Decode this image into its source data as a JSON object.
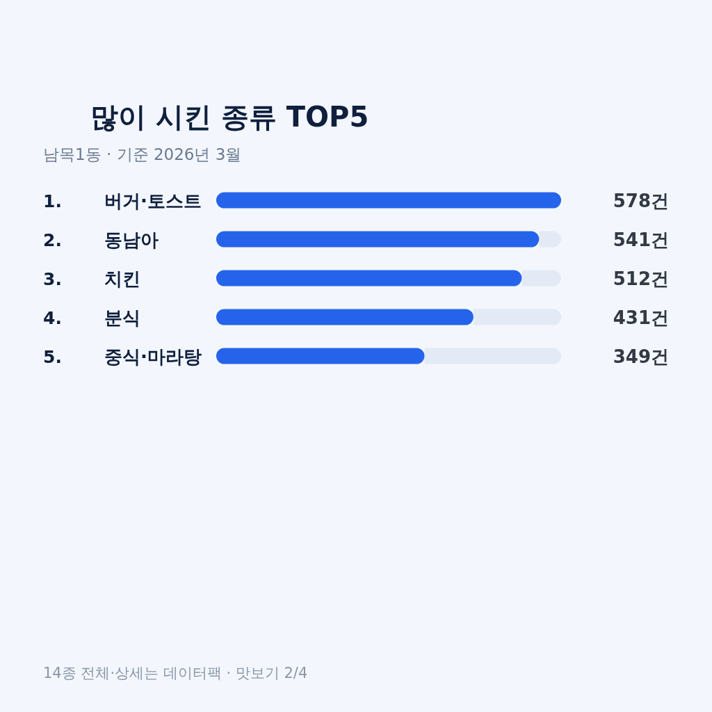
{
  "chart_data": {
    "type": "bar",
    "orientation": "horizontal",
    "title": "많이 시킨 종류 TOP5",
    "subtitle": "남목1동 · 기준 2026년 3월",
    "categories": [
      "1. 버거·토스트",
      "2. 동남아",
      "3. 치킨",
      "4. 분식",
      "5. 중식·마라탕"
    ],
    "values": [
      578,
      541,
      512,
      431,
      349
    ],
    "value_labels": [
      "578건",
      "541건",
      "512건",
      "431건",
      "349건"
    ],
    "color": "#2563eb",
    "annotations": [
      "14종 전체·상세는 데이터팩 · 맛보기 2/4"
    ]
  }
}
